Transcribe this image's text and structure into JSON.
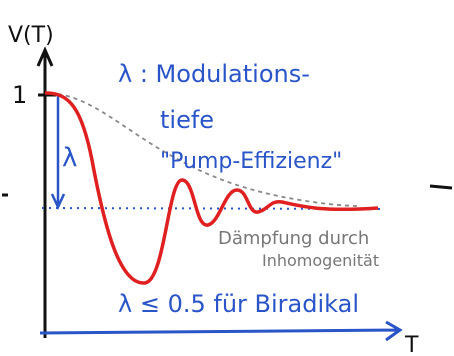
{
  "axes": {
    "y_label": "V(T)",
    "x_label": "T",
    "tick": "1"
  },
  "annotations": {
    "lambda_def_1": "λ : Modulations-",
    "lambda_def_2": "tiefe",
    "pump": "\"Pump-Effizienz\"",
    "lambda_arrow": "λ",
    "damping_1": "Dämpfung durch",
    "damping_2": "Inhomogenität",
    "condition": "λ ≤ 0.5 für Biradikal"
  }
}
